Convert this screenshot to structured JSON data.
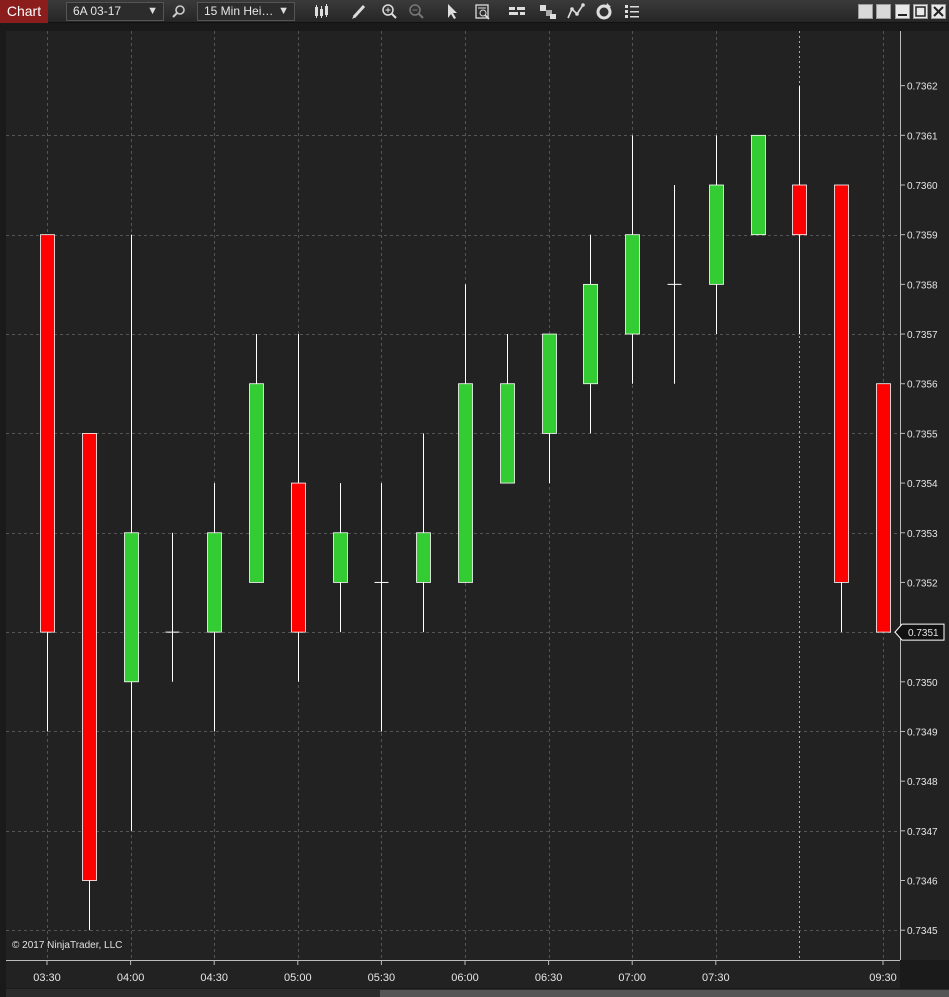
{
  "toolbar": {
    "chart_tab": "Chart",
    "instrument": "6A 03-17",
    "interval": "15 Min Hei…",
    "icons": [
      "search-icon",
      "bar-type-icon",
      "drawing-pencil-icon",
      "zoom-in-icon",
      "zoom-out-icon",
      "pointer-icon",
      "data-box-icon",
      "order-panel-icon",
      "strategies-icon",
      "indicators-icon",
      "reload-icon",
      "properties-icon"
    ]
  },
  "copyright": "© 2017 NinjaTrader, LLC",
  "chart_data": {
    "type": "candlestick",
    "instrument": "6A 03-17",
    "interval": "15 Min Heiken-Ashi",
    "y_ticks": [
      0.7345,
      0.7346,
      0.7347,
      0.7348,
      0.7349,
      0.735,
      0.7351,
      0.7352,
      0.7353,
      0.7354,
      0.7355,
      0.7356,
      0.7357,
      0.7358,
      0.7359,
      0.736,
      0.7361,
      0.7362
    ],
    "y_tick_labels": [
      "0.7345",
      "0.7346",
      "0.7347",
      "0.7348",
      "0.7349",
      "0.7350",
      "0.7351",
      "0.7352",
      "0.7353",
      "0.7354",
      "0.7355",
      "0.7356",
      "0.7357",
      "0.7358",
      "0.7359",
      "0.7360",
      "0.7361",
      "0.7362"
    ],
    "ylim": [
      0.73444,
      0.73631
    ],
    "x_ticks": [
      "03:30",
      "04:00",
      "04:30",
      "05:00",
      "05:30",
      "06:00",
      "06:30",
      "07:00",
      "07:30",
      "09:30"
    ],
    "x_tick_bar_index": [
      0,
      2,
      4,
      6,
      8,
      10,
      12,
      14,
      16,
      20
    ],
    "current_price": "0.7351",
    "up_color": "#33cc33",
    "down_color": "#ff0000",
    "candles": [
      {
        "o": 0.7359,
        "h": 0.7359,
        "l": 0.7349,
        "c": 0.7351
      },
      {
        "o": 0.7355,
        "h": 0.7355,
        "l": 0.7345,
        "c": 0.7346
      },
      {
        "o": 0.735,
        "h": 0.7359,
        "l": 0.7347,
        "c": 0.7353
      },
      {
        "o": 0.7351,
        "h": 0.7353,
        "l": 0.735,
        "c": 0.7351
      },
      {
        "o": 0.7351,
        "h": 0.7354,
        "l": 0.7349,
        "c": 0.7353
      },
      {
        "o": 0.7352,
        "h": 0.7357,
        "l": 0.7352,
        "c": 0.7356
      },
      {
        "o": 0.7354,
        "h": 0.7357,
        "l": 0.735,
        "c": 0.7351
      },
      {
        "o": 0.7352,
        "h": 0.7354,
        "l": 0.7351,
        "c": 0.7353
      },
      {
        "o": 0.7352,
        "h": 0.7354,
        "l": 0.7349,
        "c": 0.7352
      },
      {
        "o": 0.7352,
        "h": 0.7355,
        "l": 0.7351,
        "c": 0.7353
      },
      {
        "o": 0.7352,
        "h": 0.7358,
        "l": 0.7352,
        "c": 0.7356
      },
      {
        "o": 0.7354,
        "h": 0.7357,
        "l": 0.7354,
        "c": 0.7356
      },
      {
        "o": 0.7355,
        "h": 0.7357,
        "l": 0.7354,
        "c": 0.7357
      },
      {
        "o": 0.7356,
        "h": 0.7359,
        "l": 0.7355,
        "c": 0.7358
      },
      {
        "o": 0.7357,
        "h": 0.7361,
        "l": 0.7356,
        "c": 0.7359
      },
      {
        "o": 0.7358,
        "h": 0.736,
        "l": 0.7356,
        "c": 0.7358
      },
      {
        "o": 0.7358,
        "h": 0.7361,
        "l": 0.7357,
        "c": 0.736
      },
      {
        "o": 0.7359,
        "h": 0.7361,
        "l": 0.7359,
        "c": 0.7361
      },
      {
        "o": 0.736,
        "h": 0.7362,
        "l": 0.7357,
        "c": 0.7359
      },
      {
        "o": 0.736,
        "h": 0.736,
        "l": 0.7351,
        "c": 0.7352
      },
      {
        "o": 0.7356,
        "h": 0.7356,
        "l": 0.7351,
        "c": 0.7351
      }
    ]
  }
}
